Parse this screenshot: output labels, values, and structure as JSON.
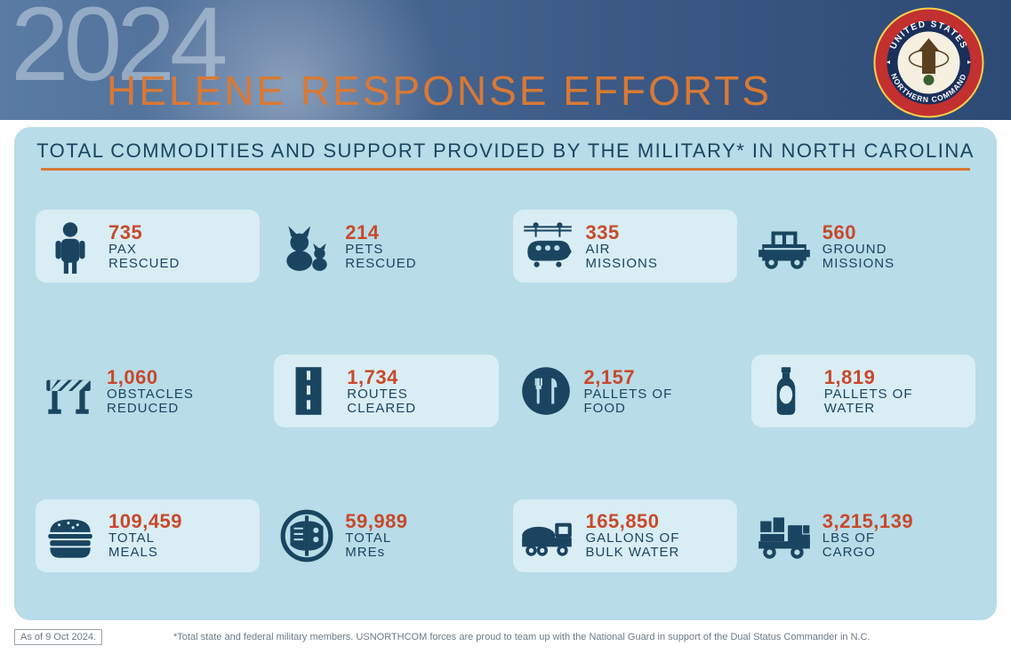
{
  "header": {
    "year": "2024",
    "title": "HELENE RESPONSE EFFORTS",
    "seal_text_top": "UNITED STATES",
    "seal_text_bottom": "NORTHERN COMMAND"
  },
  "subtitle": "TOTAL COMMODITIES AND SUPPORT PROVIDED BY THE MILITARY* IN NORTH CAROLINA",
  "colors": {
    "accent_orange": "#d97935",
    "value_red": "#c8492a",
    "label_navy": "#1a4560",
    "icon_navy": "#1a4560",
    "panel_bg": "#b8dce8",
    "pill_bg": "#d9edf4",
    "header_grad_start": "#5a7ba3",
    "header_grad_end": "#2d4a75"
  },
  "stats": [
    {
      "value": "735",
      "label1": "PAX",
      "label2": "RESCUED",
      "pill": true,
      "icon": "person"
    },
    {
      "value": "214",
      "label1": "PETS",
      "label2": "RESCUED",
      "pill": false,
      "icon": "pets"
    },
    {
      "value": "335",
      "label1": "AIR",
      "label2": "MISSIONS",
      "pill": true,
      "icon": "helicopter"
    },
    {
      "value": "560",
      "label1": "GROUND",
      "label2": "MISSIONS",
      "pill": false,
      "icon": "humvee"
    },
    {
      "value": "1,060",
      "label1": "OBSTACLES",
      "label2": "REDUCED",
      "pill": false,
      "icon": "barrier"
    },
    {
      "value": "1,734",
      "label1": "ROUTES",
      "label2": "CLEARED",
      "pill": true,
      "icon": "road"
    },
    {
      "value": "2,157",
      "label1": "PALLETS OF",
      "label2": "FOOD",
      "pill": false,
      "icon": "food"
    },
    {
      "value": "1,819",
      "label1": "PALLETS OF",
      "label2": "WATER",
      "pill": true,
      "icon": "bottle"
    },
    {
      "value": "109,459",
      "label1": "TOTAL",
      "label2": "MEALS",
      "pill": true,
      "icon": "burger"
    },
    {
      "value": "59,989",
      "label1": "TOTAL",
      "label2": "MREs",
      "pill": false,
      "icon": "mre"
    },
    {
      "value": "165,850",
      "label1": "GALLONS OF",
      "label2": "BULK WATER",
      "pill": true,
      "icon": "tanker"
    },
    {
      "value": "3,215,139",
      "label1": "LBS OF",
      "label2": "CARGO",
      "pill": false,
      "icon": "truck"
    }
  ],
  "footer": {
    "date": "As of 9 Oct 2024.",
    "note": "*Total state and federal military members.  USNORTHCOM forces are proud to team up with the National Guard in support of the Dual Status Commander in N.C."
  }
}
